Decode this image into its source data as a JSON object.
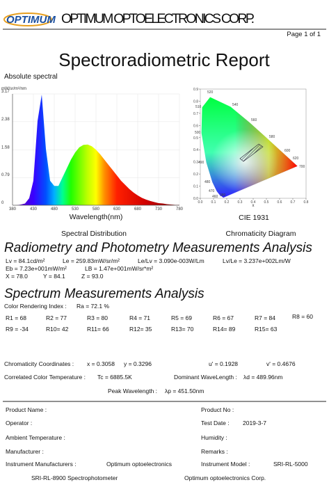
{
  "header": {
    "logo": "OPTIMUM",
    "company": "OPTIMUM OPTOELECTRONICS CORP.",
    "page": "Page 1 of 1"
  },
  "title": "Spectroradiometric Report",
  "chart_data": [
    {
      "type": "area",
      "title": "Absolute spectral",
      "y_label": "mW/sr/m²/nm",
      "x_label": "Wavelength(nm)",
      "caption": "Spectral Distribution",
      "x": [
        380,
        390,
        400,
        410,
        420,
        430,
        440,
        450,
        460,
        470,
        480,
        490,
        500,
        510,
        520,
        530,
        540,
        550,
        560,
        570,
        580,
        590,
        600,
        610,
        620,
        630,
        640,
        650,
        660,
        670,
        680,
        690,
        700,
        710,
        720,
        730,
        740,
        750,
        760,
        770,
        780
      ],
      "values": [
        0,
        0,
        0.02,
        0.05,
        0.2,
        0.7,
        2.4,
        3.15,
        1.6,
        0.7,
        0.55,
        0.55,
        0.8,
        1.05,
        1.3,
        1.5,
        1.65,
        1.72,
        1.73,
        1.68,
        1.58,
        1.45,
        1.3,
        1.15,
        1.0,
        0.85,
        0.7,
        0.58,
        0.46,
        0.36,
        0.28,
        0.21,
        0.16,
        0.12,
        0.09,
        0.06,
        0.05,
        0.03,
        0.02,
        0.01,
        0.01
      ],
      "xlim": [
        380,
        780
      ],
      "ylim": [
        0,
        3.17
      ],
      "xticks": [
        380,
        430,
        480,
        530,
        580,
        630,
        680,
        730,
        780
      ],
      "yticks": [
        0,
        0.79,
        1.58,
        2.38,
        3.17
      ],
      "grid": true
    },
    {
      "type": "chromaticity",
      "title": "CIE 1931",
      "caption": "Chromaticity Diagram",
      "x_label": "x",
      "xlim": [
        0,
        0.8
      ],
      "ylim": [
        0,
        0.9
      ],
      "xticks": [
        {
          "value": 0,
          "label": "0.0"
        },
        0.1,
        0.2,
        0.3,
        0.4,
        0.5,
        0.6,
        0.7,
        0.8
      ],
      "yticks": [
        {
          "value": 0,
          "label": "0.0"
        },
        0.1,
        0.2,
        0.3,
        0.4,
        0.5,
        0.6,
        0.7,
        0.8,
        0.9
      ],
      "wavelength_labels": [
        "520",
        "540",
        "560",
        "580",
        "600",
        "620",
        "700",
        "510",
        "500",
        "490",
        "480",
        "470",
        "460",
        "380"
      ]
    }
  ],
  "radiometry": {
    "heading": "Radiometry and Photometry Measurements Analysis",
    "lv": "Lv = 84.1cd/m²",
    "le": "Le = 259.83mW/sr/m²",
    "le_lv": "Le/Lv = 3.090e-003W/Lm",
    "lv_le": "Lv/Le = 3.237e+002Lm/W",
    "eb": "Eb = 7.23e+001mW/m²",
    "lb": "LB = 1.47e+001mW/sr*m²",
    "X": "X = 78.0",
    "Y": "Y = 84.1",
    "Z": "Z = 93.0"
  },
  "spectrum": {
    "heading": "Spectrum Measurements Analysis",
    "cri_label": "Color Rendering Index :",
    "ra": "Ra = 72.1 %",
    "r_values": [
      "R1 = 68",
      "R2 = 77",
      "R3 = 80",
      "R4 = 71",
      "R5 = 69",
      "R6 = 67",
      "R7 = 84",
      "R8 = 60",
      "R9 = -34",
      "R10= 42",
      "R11= 66",
      "R12= 35",
      "R13= 70",
      "R14= 89",
      "R15= 63"
    ],
    "chroma_label": "Chromaticity Coordinates :",
    "cx": "x = 0.3058",
    "cy": "y = 0.3296",
    "u": "u' = 0.1928",
    "v": "v' = 0.4676",
    "cct_label": "Correlated Color Temperature :",
    "tc": "Tc = 6885.5K",
    "dom_label": "Dominant WaveLength :",
    "ld": "λd = 489.96nm",
    "peak_label": "Peak Wavelength :",
    "lp": "λp = 451.50nm"
  },
  "form": {
    "product_name": "Product Name :",
    "product_no": "Product No :",
    "operator": "Operator :",
    "test_date": "Test Date :",
    "test_date_value": "2019-3-7",
    "ambient": "Ambient Temperature :",
    "humidity": "Humidity :",
    "manufacturer": "Manufacturer :",
    "remarks": "Remarks :",
    "inst_manu": "Instrument Manufacturers :",
    "inst_manu_value": "Optimum optoelectronics",
    "inst_model": "Instrument Model :",
    "inst_model_value": "SRI-RL-5000",
    "instrument": "SRI-RL-8900 Spectrophotometer",
    "maker": "Optimum optoelectronics Corp."
  }
}
